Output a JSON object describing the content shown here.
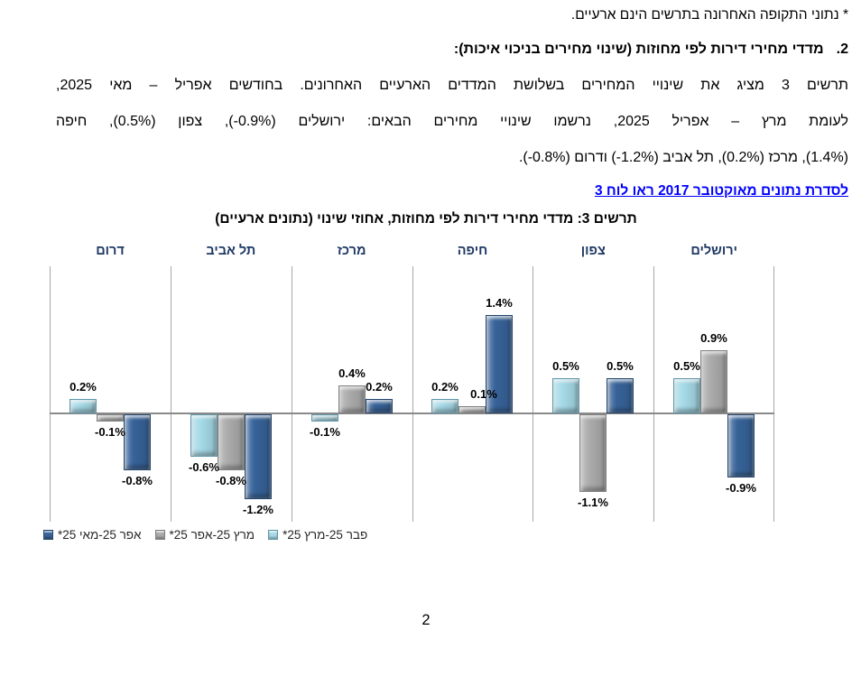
{
  "page": {
    "number": "2"
  },
  "note": "* נתוני התקופה האחרונה בתרשים הינם ארעיים.",
  "section": {
    "number": "2.",
    "heading": "מדדי מחירי דירות לפי מחוזות (שינוי מחירים בניכוי איכות):"
  },
  "paragraph": {
    "line1": "תרשים 3 מציג את שינויי המחירים בשלושת המדדים הארעיים האחרונים. בחודשים אפריל – מאי 2025,",
    "line2": [
      {
        "dir": "rtl",
        "text": "לעומת מרץ – אפריל 2025, נרשמו שינויי מחירים הבאים: ירושלים "
      },
      {
        "dir": "ltr",
        "text": "(-0.9%)"
      },
      {
        "dir": "rtl",
        "text": ", צפון "
      },
      {
        "dir": "ltr",
        "text": "(0.5%)"
      },
      {
        "dir": "rtl",
        "text": ", חיפה"
      }
    ],
    "line3": [
      {
        "dir": "ltr",
        "text": "(1.4%)"
      },
      {
        "dir": "rtl",
        "text": ", מרכז "
      },
      {
        "dir": "ltr",
        "text": "(0.2%)"
      },
      {
        "dir": "rtl",
        "text": ", תל אביב "
      },
      {
        "dir": "ltr",
        "text": "(-1.2%)"
      },
      {
        "dir": "rtl",
        "text": " ודרום "
      },
      {
        "dir": "ltr",
        "text": "(-0.8%)"
      },
      {
        "dir": "rtl",
        "text": "."
      }
    ]
  },
  "link": {
    "text": "לסדרת נתונים מאוקטובר 2017 ראו לוח 3",
    "color": "#0000FF"
  },
  "chart_data": {
    "type": "bar",
    "title": "תרשים 3: מדדי מחירי דירות לפי מחוזות, אחוזי שינוי (נתונים ארעיים)",
    "direction": "rtl",
    "categories": [
      "ירושלים",
      "צפון",
      "חיפה",
      "מרכז",
      "תל אביב",
      "דרום"
    ],
    "series": [
      {
        "name": "פבר 25-מרץ 25*",
        "color": "#a6dbe8",
        "edge": "#5f96aa",
        "values": [
          0.5,
          0.5,
          0.2,
          -0.1,
          -0.6,
          0.2
        ]
      },
      {
        "name": "מרץ 25-אפר 25*",
        "color": "#acacac",
        "edge": "#7f7f7f",
        "values": [
          0.9,
          -1.1,
          0.1,
          0.4,
          -0.8,
          -0.1
        ]
      },
      {
        "name": "אפר 25-מאי 25*",
        "color": "#376399",
        "edge": "#24456b",
        "values": [
          -0.9,
          0.5,
          1.4,
          0.2,
          -1.2,
          -0.8
        ]
      }
    ],
    "ylabel": "",
    "xlabel": "",
    "ylim": [
      -1.55,
      2.1
    ],
    "value_labels": "shown, one decimal, percent",
    "legend_position": "bottom-left",
    "gridlines": "vertical panel separators and zero line only",
    "header_color": "#1f3864",
    "grid_color": "#a6a6a6",
    "zero_line_color": "#8a8a8a",
    "label_dx": {
      "חיפה": [
        0,
        13,
        0
      ]
    }
  }
}
